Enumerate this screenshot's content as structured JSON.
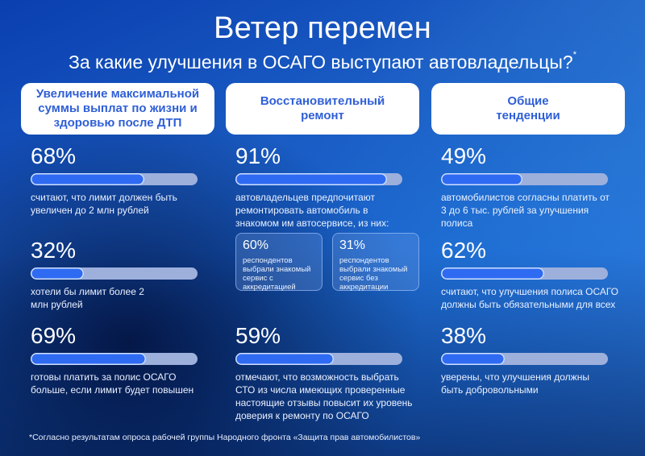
{
  "header": {
    "title": "Ветер перемен",
    "subtitle": "За какие улучшения в ОСАГО выступают автовладельцы?",
    "subtitle_mark": "*"
  },
  "columns": [
    {
      "heading": "Увеличение максимальной суммы выплат по жизни и здоровью после ДТП",
      "stats": [
        {
          "pct": "68%",
          "value": 68,
          "desc": "считают, что лимит должен быть увеличен до 2 млн рублей"
        },
        {
          "pct": "32%",
          "value": 32,
          "desc": "хотели бы лимит более 2 млн рублей"
        },
        {
          "pct": "69%",
          "value": 69,
          "desc": "готовы платить за полис ОСАГО больше, если лимит будет повышен"
        }
      ]
    },
    {
      "heading": "Восстановительный ремонт",
      "stats": [
        {
          "pct": "91%",
          "value": 91,
          "desc": "автовладельцев предпочитают ремонтировать автомобиль в знакомом им автосервисе, из них:"
        },
        {
          "pct": "59%",
          "value": 59,
          "desc": "отмечают, что возможность выбрать СТО из числа имеющих проверенные настоящие отзывы повысит их уровень доверия к ремонту по ОСАГО"
        }
      ],
      "subcards": [
        {
          "pct": "60%",
          "desc": "респондентов выбрали знакомый сервис с аккредитацией"
        },
        {
          "pct": "31%",
          "desc": "респондентов выбрали знакомый сервис без аккредитации"
        }
      ]
    },
    {
      "heading": "Общие тенденции",
      "stats": [
        {
          "pct": "49%",
          "value": 49,
          "desc": "автомобилистов согласны платить от 3 до 6 тыс. рублей за улучшения полиса"
        },
        {
          "pct": "62%",
          "value": 62,
          "desc": "считают, что улучшения полиса ОСАГО должны быть обязательными для всех"
        },
        {
          "pct": "38%",
          "value": 38,
          "desc": "уверены, что улучшения должны быть добровольными"
        }
      ]
    }
  ],
  "footnote": "*Согласно результатам опроса рабочей группы Народного фронта «Защита прав автомобилистов»",
  "colors": {
    "bar_fill": "#2f6af2",
    "bar_track": "#9db0dc",
    "heading_text": "#2f5fd6",
    "background_dark": "#041646",
    "background_light": "#3f8fd0"
  },
  "chart_data": {
    "type": "bar",
    "title": "Ветер перемен",
    "subtitle": "За какие улучшения в ОСАГО выступают автовладельцы?",
    "orientation": "horizontal",
    "xlim": [
      0,
      100
    ],
    "unit": "%",
    "groups": [
      {
        "name": "Увеличение максимальной суммы выплат по жизни и здоровью после ДТП",
        "categories": [
          "считают, что лимит должен быть увеличен до 2 млн рублей",
          "хотели бы лимит более 2 млн рублей",
          "готовы платить за полис ОСАГО больше, если лимит будет повышен"
        ],
        "values": [
          68,
          32,
          69
        ]
      },
      {
        "name": "Восстановительный ремонт",
        "categories": [
          "предпочитают ремонтировать автомобиль в знакомом автосервисе",
          "из них: выбрали знакомый сервис с аккредитацией",
          "из них: выбрали знакомый сервис без аккредитации",
          "возможность выбрать СТО с проверенными отзывами повысит доверие"
        ],
        "values": [
          91,
          60,
          31,
          59
        ]
      },
      {
        "name": "Общие тенденции",
        "categories": [
          "согласны платить от 3 до 6 тыс. рублей за улучшения полиса",
          "улучшения полиса ОСАГО должны быть обязательными для всех",
          "улучшения должны быть добровольными"
        ],
        "values": [
          49,
          62,
          38
        ]
      }
    ],
    "annotation": "*Согласно результатам опроса рабочей группы Народного фронта «Защита прав автомобилистов»"
  }
}
